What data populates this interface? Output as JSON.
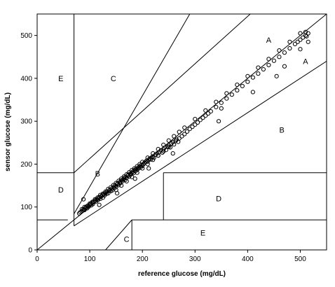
{
  "chart_data": {
    "type": "scatter",
    "title": "",
    "xlabel": "reference glucose (mg/dL)",
    "ylabel": "sensor glucose (mg/dL)",
    "xlim": [
      0,
      550
    ],
    "ylim": [
      0,
      550
    ],
    "xticks": [
      0,
      100,
      200,
      300,
      400,
      500
    ],
    "yticks": [
      0,
      100,
      200,
      300,
      400,
      500
    ],
    "grid": false,
    "legend": "none",
    "marker": "open-circle",
    "zones": [
      {
        "label": "A",
        "x": 440,
        "y": 490
      },
      {
        "label": "A",
        "x": 510,
        "y": 440
      },
      {
        "label": "B",
        "x": 115,
        "y": 178
      },
      {
        "label": "B",
        "x": 465,
        "y": 280
      },
      {
        "label": "C",
        "x": 145,
        "y": 400
      },
      {
        "label": "C",
        "x": 170,
        "y": 25
      },
      {
        "label": "D",
        "x": 45,
        "y": 140
      },
      {
        "label": "D",
        "x": 345,
        "y": 120
      },
      {
        "label": "E",
        "x": 45,
        "y": 400
      },
      {
        "label": "E",
        "x": 315,
        "y": 40
      }
    ],
    "zone_boundaries": [
      [
        [
          0,
          180
        ],
        [
          70,
          180
        ]
      ],
      [
        [
          0,
          70
        ],
        [
          58.3,
          70
        ]
      ],
      [
        [
          70,
          56
        ],
        [
          70,
          550
        ]
      ],
      [
        [
          70,
          84
        ],
        [
          290,
          550
        ]
      ],
      [
        [
          70,
          180
        ],
        [
          405,
          550
        ]
      ],
      [
        [
          130,
          0
        ],
        [
          180,
          70
        ]
      ],
      [
        [
          180,
          0
        ],
        [
          180,
          70
        ]
      ],
      [
        [
          180,
          70
        ],
        [
          550,
          70
        ]
      ],
      [
        [
          240,
          70
        ],
        [
          240,
          180
        ]
      ],
      [
        [
          240,
          180
        ],
        [
          550,
          180
        ]
      ],
      [
        [
          70,
          56
        ],
        [
          550,
          440
        ]
      ],
      [
        [
          0,
          0
        ],
        [
          550,
          550
        ]
      ]
    ],
    "series": [
      {
        "x": [
          80,
          82,
          85,
          87,
          88,
          90,
          92,
          93,
          95,
          96,
          98,
          100,
          102,
          103,
          105,
          106,
          108,
          110,
          112,
          113,
          115,
          117,
          118,
          120,
          122,
          124,
          125,
          127,
          128,
          130,
          132,
          133,
          135,
          137,
          138,
          140,
          142,
          143,
          145,
          147,
          148,
          150,
          152,
          153,
          155,
          157,
          158,
          160,
          162,
          163,
          165,
          167,
          168,
          170,
          172,
          173,
          175,
          177,
          178,
          180,
          182,
          183,
          185,
          187,
          188,
          190,
          192,
          193,
          195,
          197,
          198,
          200,
          202,
          204,
          206,
          208,
          210,
          212,
          214,
          216,
          218,
          220,
          222,
          225,
          228,
          230,
          232,
          235,
          238,
          240,
          242,
          245,
          248,
          250,
          253,
          255,
          258,
          260,
          263,
          265,
          268,
          270,
          275,
          280,
          285,
          290,
          295,
          300,
          305,
          310,
          315,
          320,
          325,
          330,
          340,
          350,
          360,
          370,
          380,
          390,
          400,
          410,
          420,
          430,
          440,
          450,
          460,
          470,
          480,
          490,
          495,
          500,
          505,
          510,
          512,
          515,
          85,
          90,
          95,
          100,
          105,
          110,
          115,
          120,
          125,
          130,
          135,
          140,
          145,
          150,
          155,
          160,
          165,
          170,
          175,
          180,
          185,
          190,
          195,
          200,
          210,
          220,
          230,
          240,
          250,
          260,
          270,
          280,
          300,
          320,
          340,
          360,
          380,
          400,
          420,
          440,
          460,
          480,
          500,
          510,
          150,
          160,
          170,
          180,
          190,
          200,
          210,
          220,
          230,
          240,
          250,
          350,
          410,
          455,
          500,
          88,
          118,
          152,
          186,
          212,
          258,
          345,
          470,
          515
        ],
        "y": [
          85,
          88,
          90,
          92,
          95,
          93,
          98,
          100,
          97,
          103,
          101,
          105,
          108,
          104,
          110,
          107,
          112,
          115,
          113,
          118,
          116,
          120,
          123,
          119,
          125,
          128,
          122,
          130,
          127,
          133,
          131,
          136,
          132,
          138,
          140,
          137,
          143,
          139,
          146,
          144,
          150,
          148,
          153,
          155,
          151,
          158,
          156,
          162,
          160,
          164,
          167,
          163,
          170,
          168,
          173,
          175,
          171,
          178,
          176,
          180,
          183,
          179,
          186,
          184,
          189,
          187,
          192,
          190,
          195,
          193,
          198,
          196,
          200,
          203,
          205,
          208,
          206,
          210,
          213,
          211,
          216,
          218,
          215,
          222,
          225,
          220,
          228,
          232,
          227,
          235,
          238,
          233,
          241,
          244,
          239,
          248,
          251,
          246,
          254,
          257,
          252,
          260,
          265,
          270,
          276,
          282,
          287,
          292,
          297,
          303,
          308,
          313,
          318,
          323,
          333,
          343,
          353,
          362,
          372,
          382,
          392,
          402,
          411,
          421,
          431,
          441,
          450,
          460,
          470,
          480,
          485,
          490,
          495,
          500,
          498,
          505,
          95,
          100,
          102,
          108,
          112,
          118,
          122,
          128,
          131,
          136,
          142,
          146,
          151,
          156,
          161,
          166,
          171,
          176,
          181,
          186,
          190,
          195,
          200,
          205,
          215,
          225,
          235,
          245,
          255,
          265,
          275,
          285,
          305,
          325,
          345,
          365,
          385,
          405,
          425,
          445,
          465,
          485,
          505,
          508,
          140,
          150,
          160,
          170,
          180,
          190,
          200,
          210,
          220,
          230,
          240,
          330,
          368,
          405,
          468,
          118,
          105,
          132,
          166,
          190,
          225,
          300,
          428,
          485
        ]
      }
    ]
  }
}
